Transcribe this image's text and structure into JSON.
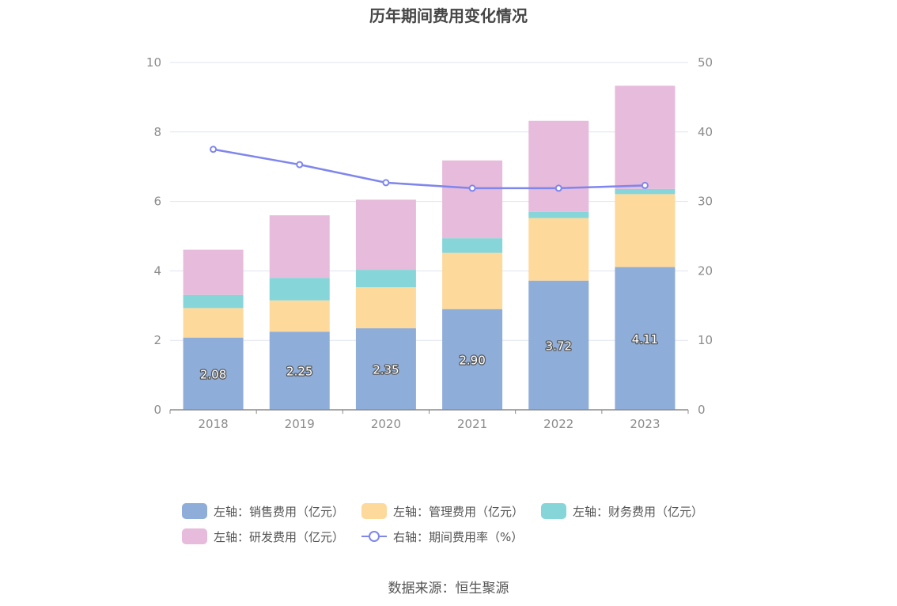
{
  "chart_data": {
    "type": "bar",
    "title": "历年期间费用变化情况",
    "categories": [
      "2018",
      "2019",
      "2020",
      "2021",
      "2022",
      "2023"
    ],
    "stacked": true,
    "series": [
      {
        "name": "左轴：销售费用（亿元）",
        "axis": "left",
        "type": "bar",
        "color": "#8eadd9",
        "values": [
          2.08,
          2.25,
          2.35,
          2.9,
          3.72,
          4.11
        ],
        "labels": [
          "2.08",
          "2.25",
          "2.35",
          "2.90",
          "3.72",
          "4.11"
        ]
      },
      {
        "name": "左轴：管理费用（亿元）",
        "axis": "left",
        "type": "bar",
        "color": "#fdd99b",
        "values": [
          0.85,
          0.9,
          1.18,
          1.62,
          1.8,
          2.1
        ]
      },
      {
        "name": "左轴：财务费用（亿元）",
        "axis": "left",
        "type": "bar",
        "color": "#86d5d9",
        "values": [
          0.38,
          0.65,
          0.5,
          0.42,
          0.18,
          0.15
        ]
      },
      {
        "name": "左轴：研发费用（亿元）",
        "axis": "left",
        "type": "bar",
        "color": "#e6bbdb",
        "values": [
          1.3,
          1.8,
          2.02,
          2.24,
          2.62,
          2.97
        ]
      },
      {
        "name": "右轴：期间费用率（%）",
        "axis": "right",
        "type": "line",
        "color": "#7f86ec",
        "values": [
          37.5,
          35.3,
          32.7,
          31.9,
          31.9,
          32.3
        ]
      }
    ],
    "y_left": {
      "ylim": [
        0,
        10
      ],
      "ticks": [
        "0",
        "2",
        "4",
        "6",
        "8",
        "10"
      ]
    },
    "y_right": {
      "ylim": [
        0,
        50
      ],
      "ticks": [
        "0",
        "10",
        "20",
        "30",
        "40",
        "50"
      ]
    },
    "grid": true,
    "legend_position": "bottom",
    "source": "数据来源：恒生聚源"
  }
}
